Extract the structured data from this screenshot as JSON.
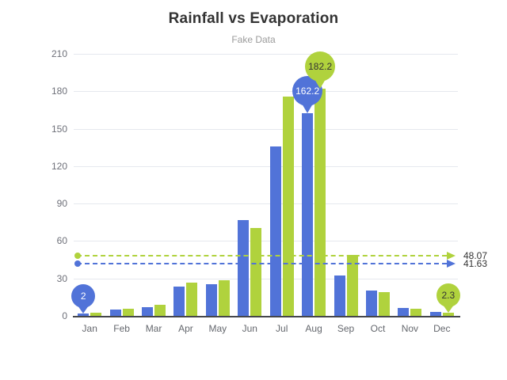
{
  "title": "Rainfall vs Evaporation",
  "subtitle": "Fake Data",
  "colors": {
    "rainfall": "#5173d8",
    "evaporation": "#b0d23d",
    "grid_line": "#e5e8ee",
    "axis_line": "#45464b",
    "axis_label": "#6e7079",
    "title_text": "#333333",
    "subtitle_text": "#9b9b9b",
    "marker_value_text": "#333333"
  },
  "chart_data": {
    "type": "bar",
    "title": "Rainfall vs Evaporation",
    "subtitle": "Fake Data",
    "categories": [
      "Jan",
      "Feb",
      "Mar",
      "Apr",
      "May",
      "Jun",
      "Jul",
      "Aug",
      "Sep",
      "Oct",
      "Nov",
      "Dec"
    ],
    "series": [
      {
        "name": "Rainfall",
        "color": "#5173d8",
        "marker_text_color": "#ffffff",
        "values": [
          2.0,
          4.9,
          7.0,
          23.2,
          25.6,
          76.7,
          135.6,
          162.2,
          32.6,
          20.0,
          6.4,
          3.3
        ],
        "max_marker": {
          "category": "Aug",
          "label": "162.2"
        },
        "min_marker": {
          "category": "Jan",
          "label": "2"
        },
        "average_line": {
          "value": 41.63,
          "label": "41.63"
        }
      },
      {
        "name": "Evaporation",
        "color": "#b0d23d",
        "marker_text_color": "#333333",
        "values": [
          2.6,
          5.9,
          9.0,
          26.4,
          28.7,
          70.7,
          175.6,
          182.2,
          48.7,
          18.8,
          6.0,
          2.3
        ],
        "max_marker": {
          "category": "Aug",
          "label": "182.2"
        },
        "min_marker": {
          "category": "Dec",
          "label": "2.3"
        },
        "average_line": {
          "value": 48.07,
          "label": "48.07"
        }
      }
    ],
    "y_ticks": [
      0,
      30,
      60,
      90,
      120,
      150,
      180,
      210
    ],
    "ylim": [
      0,
      210
    ],
    "xlabel": "",
    "ylabel": "",
    "grid": true,
    "legend": "none"
  }
}
